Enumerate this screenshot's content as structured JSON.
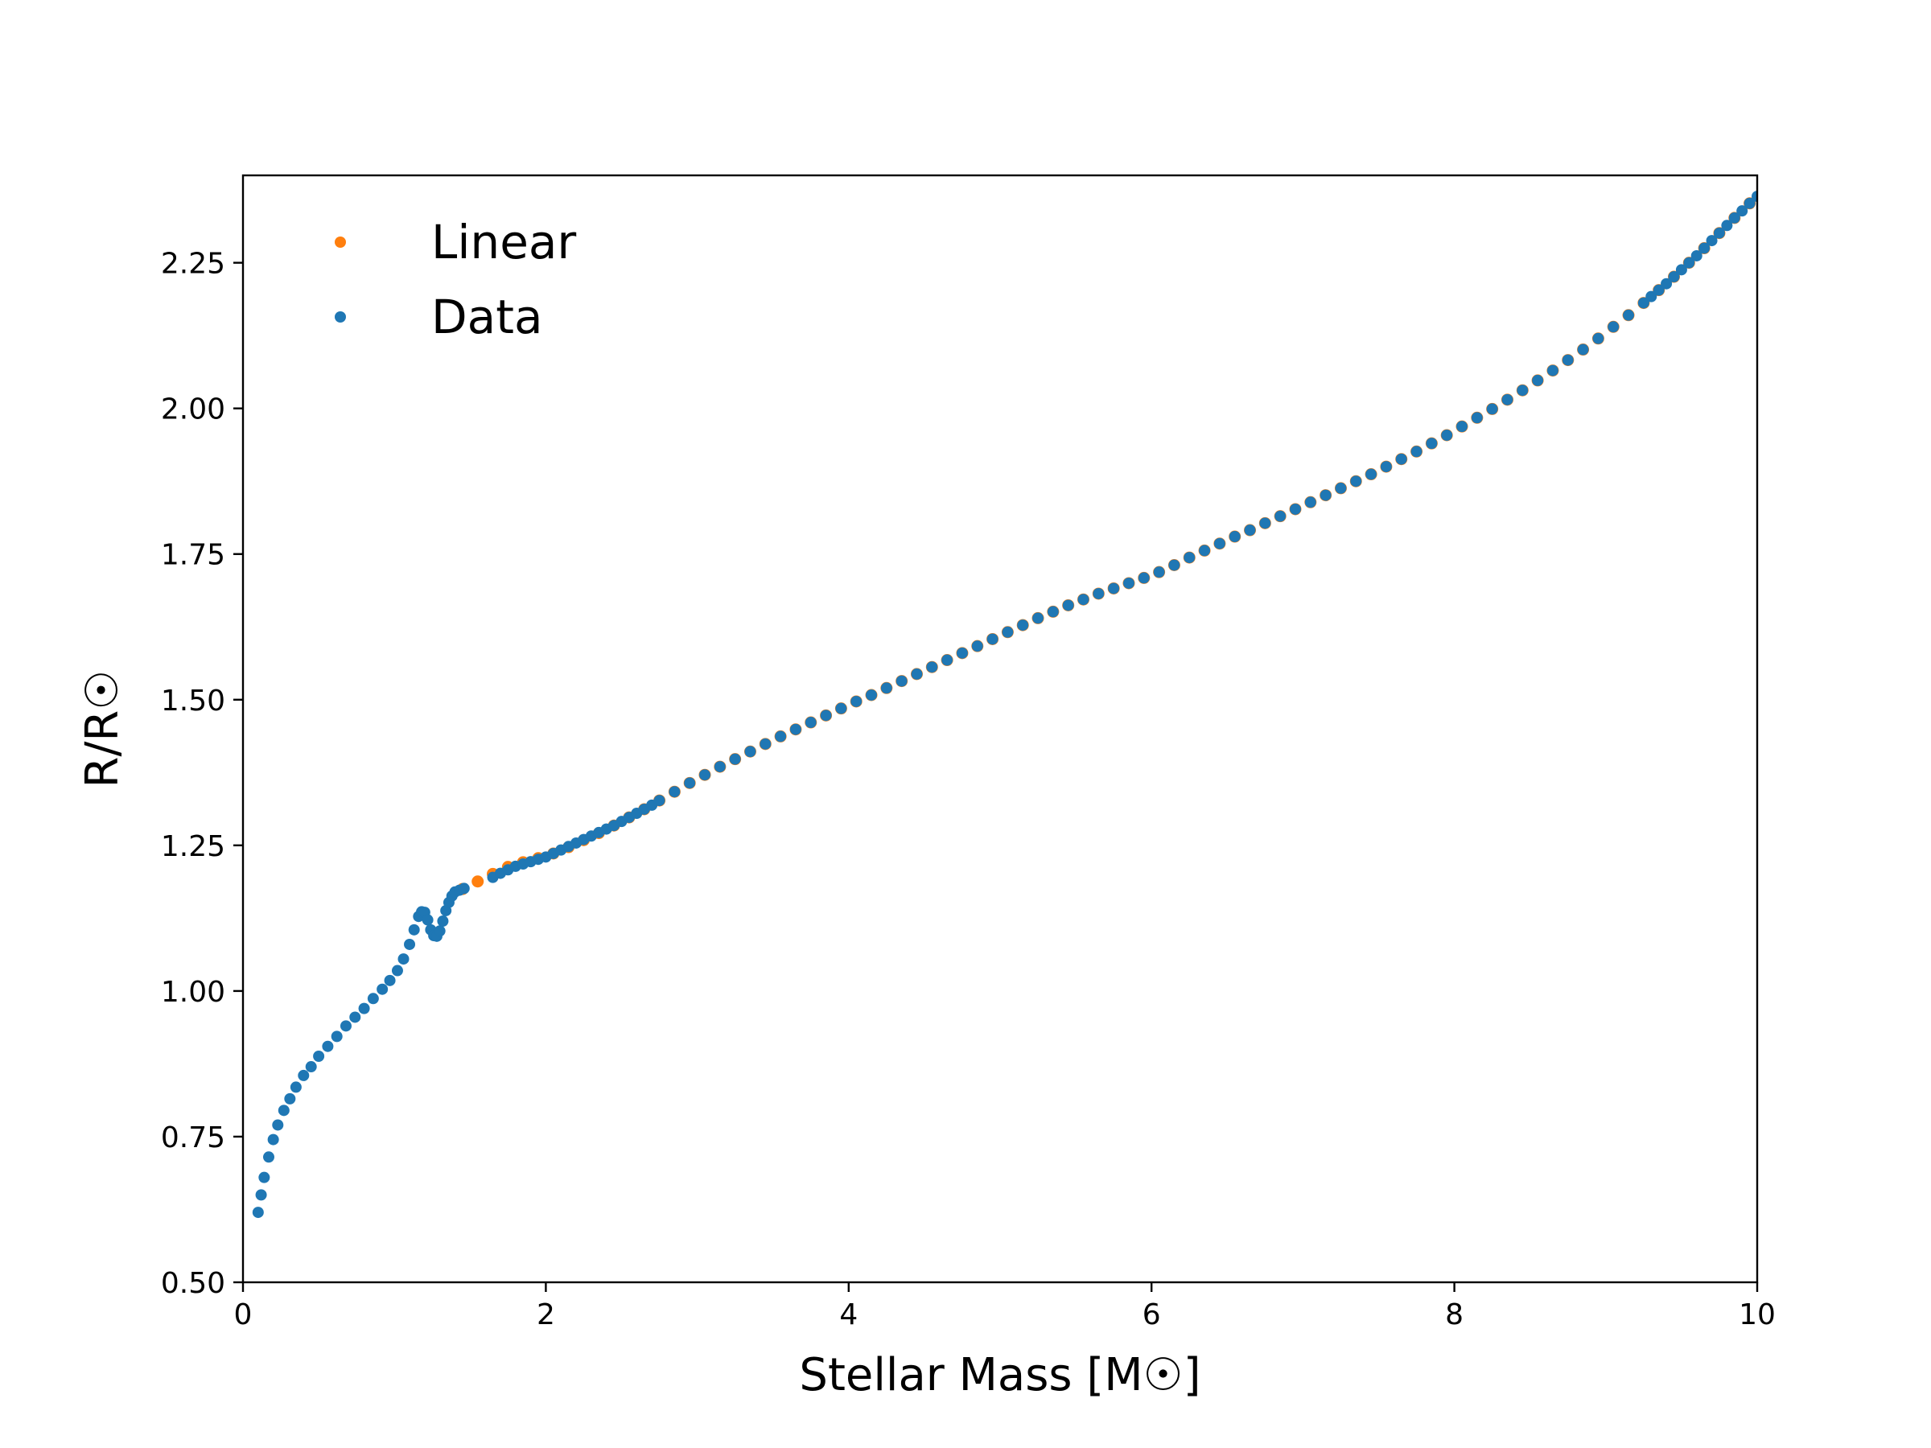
{
  "chart_data": {
    "type": "scatter",
    "xlabel": "Stellar Mass [M☉]",
    "ylabel": "R/R☉",
    "xlim": [
      0,
      10
    ],
    "ylim": [
      0.5,
      2.4
    ],
    "x_ticks": [
      "0",
      "2",
      "4",
      "6",
      "8",
      "10"
    ],
    "y_ticks": [
      "0.50",
      "0.75",
      "1.00",
      "1.25",
      "1.50",
      "1.75",
      "2.00",
      "2.25"
    ],
    "grid": false,
    "legend_position": "top-left",
    "series": [
      {
        "name": "Linear",
        "color": "#ff7f0e",
        "x": [
          1.45,
          1.55,
          1.65,
          1.75,
          1.85,
          1.95,
          2.05,
          2.15,
          2.25,
          2.35,
          2.45,
          2.55,
          2.65,
          2.75,
          2.85,
          2.95,
          3.05,
          3.15,
          3.25,
          3.35,
          3.45,
          3.55,
          3.65,
          3.75,
          3.85,
          3.95,
          4.05,
          4.15,
          4.25,
          4.35,
          4.45,
          4.55,
          4.65,
          4.75,
          4.85,
          4.95,
          5.05,
          5.15,
          5.25,
          5.35,
          5.45,
          5.55,
          5.65,
          5.75,
          5.85,
          5.95,
          6.05,
          6.15,
          6.25,
          6.35,
          6.45,
          6.55,
          6.65,
          6.75,
          6.85,
          6.95,
          7.05,
          7.15,
          7.25,
          7.35,
          7.45,
          7.55,
          7.65,
          7.75,
          7.85,
          7.95,
          8.05,
          8.15,
          8.25,
          8.35,
          8.45,
          8.55,
          8.65,
          8.75,
          8.85,
          8.95,
          9.05,
          9.15,
          9.25,
          9.35,
          9.45,
          9.55,
          9.65,
          9.75,
          9.85,
          9.95
        ],
        "y": [
          1.175,
          1.188,
          1.201,
          1.213,
          1.221,
          1.228,
          1.236,
          1.247,
          1.259,
          1.271,
          1.284,
          1.298,
          1.312,
          1.327,
          1.342,
          1.357,
          1.371,
          1.385,
          1.398,
          1.411,
          1.424,
          1.437,
          1.449,
          1.461,
          1.473,
          1.485,
          1.497,
          1.508,
          1.52,
          1.532,
          1.544,
          1.556,
          1.568,
          1.58,
          1.592,
          1.604,
          1.616,
          1.628,
          1.64,
          1.651,
          1.662,
          1.672,
          1.682,
          1.691,
          1.7,
          1.709,
          1.719,
          1.731,
          1.744,
          1.756,
          1.768,
          1.78,
          1.791,
          1.803,
          1.815,
          1.827,
          1.839,
          1.851,
          1.863,
          1.875,
          1.887,
          1.9,
          1.913,
          1.926,
          1.94,
          1.954,
          1.969,
          1.984,
          1.999,
          2.015,
          2.031,
          2.048,
          2.065,
          2.083,
          2.101,
          2.12,
          2.14,
          2.16,
          2.181,
          2.203,
          2.226,
          2.25,
          2.275,
          2.301,
          2.327,
          2.352
        ]
      },
      {
        "name": "Data",
        "color": "#1f77b4",
        "x": [
          0.1,
          0.12,
          0.14,
          0.17,
          0.2,
          0.23,
          0.27,
          0.31,
          0.35,
          0.4,
          0.45,
          0.5,
          0.56,
          0.62,
          0.68,
          0.74,
          0.8,
          0.86,
          0.92,
          0.97,
          1.02,
          1.06,
          1.1,
          1.13,
          1.16,
          1.18,
          1.2,
          1.22,
          1.24,
          1.26,
          1.28,
          1.3,
          1.32,
          1.34,
          1.36,
          1.38,
          1.4,
          1.43,
          1.46,
          1.65,
          1.7,
          1.75,
          1.8,
          1.85,
          1.9,
          1.95,
          2.0,
          2.05,
          2.1,
          2.15,
          2.2,
          2.25,
          2.3,
          2.35,
          2.4,
          2.45,
          2.5,
          2.55,
          2.6,
          2.65,
          2.7,
          2.75,
          2.85,
          2.95,
          3.05,
          3.15,
          3.25,
          3.35,
          3.45,
          3.55,
          3.65,
          3.75,
          3.85,
          3.95,
          4.05,
          4.15,
          4.25,
          4.35,
          4.45,
          4.55,
          4.65,
          4.75,
          4.85,
          4.95,
          5.05,
          5.15,
          5.25,
          5.35,
          5.45,
          5.55,
          5.65,
          5.75,
          5.85,
          5.95,
          6.05,
          6.15,
          6.25,
          6.35,
          6.45,
          6.55,
          6.65,
          6.75,
          6.85,
          6.95,
          7.05,
          7.15,
          7.25,
          7.35,
          7.45,
          7.55,
          7.65,
          7.75,
          7.85,
          7.95,
          8.05,
          8.15,
          8.25,
          8.35,
          8.45,
          8.55,
          8.65,
          8.75,
          8.85,
          8.95,
          9.05,
          9.15,
          9.25,
          9.3,
          9.35,
          9.4,
          9.45,
          9.5,
          9.55,
          9.6,
          9.65,
          9.7,
          9.75,
          9.8,
          9.85,
          9.9,
          9.95,
          10.0
        ],
        "y": [
          0.62,
          0.65,
          0.68,
          0.715,
          0.745,
          0.77,
          0.795,
          0.815,
          0.835,
          0.855,
          0.87,
          0.888,
          0.905,
          0.922,
          0.94,
          0.955,
          0.97,
          0.987,
          1.003,
          1.018,
          1.035,
          1.055,
          1.08,
          1.105,
          1.128,
          1.136,
          1.135,
          1.122,
          1.105,
          1.095,
          1.094,
          1.103,
          1.12,
          1.138,
          1.152,
          1.163,
          1.17,
          1.173,
          1.176,
          1.195,
          1.202,
          1.208,
          1.214,
          1.218,
          1.222,
          1.226,
          1.23,
          1.236,
          1.242,
          1.248,
          1.254,
          1.26,
          1.266,
          1.272,
          1.278,
          1.284,
          1.291,
          1.298,
          1.305,
          1.312,
          1.319,
          1.327,
          1.342,
          1.357,
          1.371,
          1.385,
          1.398,
          1.411,
          1.424,
          1.437,
          1.449,
          1.461,
          1.473,
          1.485,
          1.497,
          1.508,
          1.52,
          1.532,
          1.544,
          1.556,
          1.568,
          1.58,
          1.592,
          1.604,
          1.616,
          1.628,
          1.64,
          1.651,
          1.662,
          1.672,
          1.682,
          1.691,
          1.7,
          1.709,
          1.719,
          1.731,
          1.744,
          1.756,
          1.768,
          1.78,
          1.791,
          1.803,
          1.815,
          1.827,
          1.839,
          1.851,
          1.863,
          1.875,
          1.887,
          1.9,
          1.913,
          1.926,
          1.94,
          1.954,
          1.969,
          1.984,
          1.999,
          2.015,
          2.031,
          2.048,
          2.065,
          2.083,
          2.101,
          2.12,
          2.14,
          2.16,
          2.181,
          2.192,
          2.203,
          2.214,
          2.226,
          2.238,
          2.25,
          2.262,
          2.275,
          2.288,
          2.301,
          2.314,
          2.327,
          2.339,
          2.352,
          2.364
        ]
      }
    ]
  }
}
